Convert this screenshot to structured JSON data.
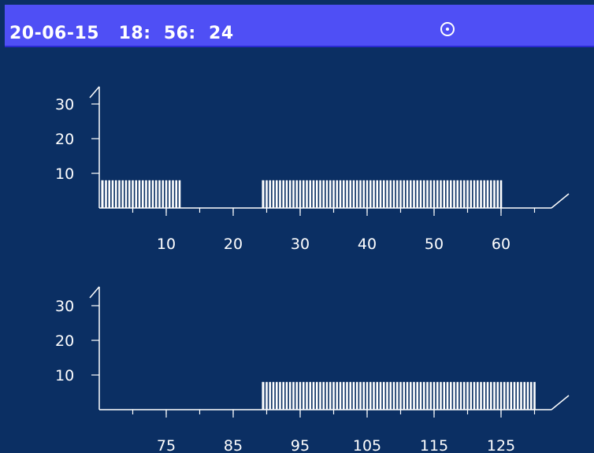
{
  "status_bar": {
    "datetime": "20-06-15   18:  56:  24",
    "icon": "clock-icon"
  },
  "colors": {
    "background": "#0b2f63",
    "status_bar": "#4f4ff5",
    "foreground": "#ffffff"
  },
  "chart_data": [
    {
      "type": "bar",
      "title": "",
      "xlabel": "",
      "ylabel": "",
      "xlim": [
        0,
        68
      ],
      "ylim": [
        0,
        40
      ],
      "x_ticks": [
        10,
        20,
        30,
        40,
        50,
        60
      ],
      "y_ticks": [
        10,
        20,
        30
      ],
      "segments": [
        {
          "x_start": 0.5,
          "x_end": 12,
          "value": 8,
          "bar_spacing": 0.5
        },
        {
          "x_start": 24.5,
          "x_end": 60,
          "value": 8,
          "bar_spacing": 0.5
        }
      ]
    },
    {
      "type": "bar",
      "title": "",
      "xlabel": "",
      "ylabel": "",
      "xlim": [
        65,
        135
      ],
      "ylim": [
        0,
        40
      ],
      "x_ticks": [
        75,
        85,
        95,
        105,
        115,
        125
      ],
      "y_ticks": [
        10,
        20,
        30
      ],
      "segments": [
        {
          "x_start": 89.5,
          "x_end": 130,
          "value": 8,
          "bar_spacing": 0.5
        }
      ]
    }
  ]
}
